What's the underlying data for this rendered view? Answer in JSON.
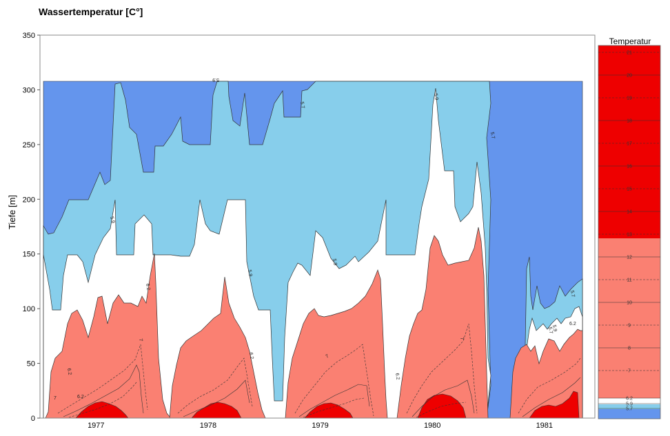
{
  "chart_data": {
    "type": "heatmap",
    "subtype": "filled-contour",
    "title": "Wassertemperatur [C°]",
    "xlabel": "",
    "ylabel": "Tiefe [m]",
    "xlim": [
      1976.6,
      1981.55
    ],
    "ylim": [
      0,
      350
    ],
    "yticks": [
      0,
      50,
      100,
      150,
      200,
      250,
      300,
      350
    ],
    "xticks": [
      {
        "label": "1977",
        "value": 1977.0
      },
      {
        "label": "1978",
        "value": 1978.0
      },
      {
        "label": "1979",
        "value": 1979.0
      },
      {
        "label": "1980",
        "value": 1980.0
      },
      {
        "label": "1981",
        "value": 1981.0
      }
    ],
    "grid": false,
    "legend_title": "Temperatur",
    "legend_placement": "right",
    "legend_levels": [
      "21",
      "20",
      "19",
      "18",
      "17",
      "16",
      "15",
      "14",
      "13",
      "12",
      "11",
      "10",
      "9",
      "8",
      "7",
      "6.2",
      "5.9",
      "5.7"
    ],
    "colors": {
      "blue": "#6495ED",
      "light_blue": "#87CEEB",
      "white": "#FFFFFF",
      "salmon": "#FA8072",
      "red": "#EE0000"
    },
    "contour_labels": [
      "5.9",
      "5.9",
      "5.7",
      "5.9",
      "6.2",
      "6.2",
      "7",
      "7",
      "6.2",
      "5.7",
      "7",
      "5.9",
      "5.7",
      "5.9",
      "6.2",
      "5.7",
      "7",
      "6.2",
      "6.2",
      "5.9"
    ],
    "bands": [
      {
        "name": "below 5.7",
        "color": "#6495ED",
        "upper_edge": [
          [
            1976.6,
            175
          ],
          [
            1976.7,
            168
          ],
          [
            1976.85,
            200
          ],
          [
            1976.9,
            220
          ],
          [
            1976.95,
            212
          ],
          [
            1977.0,
            230
          ],
          [
            1977.1,
            305
          ],
          [
            1977.2,
            255
          ],
          [
            1977.25,
            225
          ],
          [
            1977.3,
            250
          ],
          [
            1977.4,
            260
          ],
          [
            1977.55,
            250
          ],
          [
            1977.7,
            250
          ],
          [
            1977.85,
            305
          ],
          [
            1977.95,
            280
          ],
          [
            1978.1,
            265
          ],
          [
            1978.2,
            300
          ],
          [
            1978.3,
            250
          ],
          [
            1978.45,
            265
          ],
          [
            1978.6,
            300
          ],
          [
            1978.75,
            275
          ],
          [
            1978.95,
            310
          ],
          [
            1980.6,
            310
          ],
          [
            1980.6,
            0
          ]
        ]
      },
      {
        "name": "5.7 - 5.9",
        "color": "#87CEEB",
        "upper_edge": [
          [
            1976.6,
            175
          ],
          [
            1976.85,
            200
          ],
          [
            1977.1,
            305
          ],
          [
            1977.3,
            250
          ],
          [
            1977.5,
            260
          ],
          [
            1977.85,
            305
          ],
          [
            1978.2,
            300
          ],
          [
            1978.6,
            300
          ],
          [
            1978.95,
            310
          ],
          [
            1980.6,
            310
          ]
        ]
      },
      {
        "name": "5.9 - 6.2",
        "color": "#FFFFFF",
        "upper_edge": [
          [
            1976.6,
            150
          ],
          [
            1976.85,
            130
          ],
          [
            1977.0,
            175
          ],
          [
            1977.1,
            150
          ],
          [
            1977.5,
            185
          ],
          [
            1977.6,
            150
          ],
          [
            1977.85,
            200
          ],
          [
            1978.05,
            170
          ],
          [
            1978.3,
            200
          ],
          [
            1978.45,
            130
          ],
          [
            1978.6,
            110
          ],
          [
            1978.7,
            20
          ],
          [
            1978.9,
            140
          ],
          [
            1979.15,
            150
          ],
          [
            1979.5,
            160
          ],
          [
            1979.6,
            150
          ],
          [
            1979.95,
            205
          ],
          [
            1980.2,
            250
          ],
          [
            1980.3,
            155
          ],
          [
            1980.5,
            215
          ],
          [
            1980.6,
            0
          ]
        ]
      },
      {
        "name": "6.2 - 13",
        "color": "#FA8072",
        "upper_edge": [
          [
            1976.65,
            0
          ],
          [
            1976.75,
            80
          ],
          [
            1976.9,
            60
          ],
          [
            1977.05,
            110
          ],
          [
            1977.3,
            110
          ],
          [
            1977.45,
            0
          ],
          [
            1977.65,
            0
          ],
          [
            1977.8,
            60
          ],
          [
            1978.05,
            80
          ],
          [
            1978.3,
            70
          ],
          [
            1978.5,
            0
          ],
          [
            1978.75,
            0
          ],
          [
            1978.95,
            95
          ],
          [
            1979.2,
            100
          ],
          [
            1979.55,
            135
          ],
          [
            1979.7,
            0
          ],
          [
            1979.85,
            0
          ],
          [
            1979.95,
            125
          ],
          [
            1980.3,
            135
          ],
          [
            1980.55,
            160
          ],
          [
            1980.6,
            0
          ]
        ]
      },
      {
        "name": "above 13",
        "color": "#EE0000",
        "upper_edge": [
          [
            1976.85,
            0
          ],
          [
            1977.0,
            15
          ],
          [
            1977.15,
            5
          ],
          [
            1977.85,
            0
          ],
          [
            1978.05,
            15
          ],
          [
            1978.3,
            5
          ],
          [
            1978.9,
            0
          ],
          [
            1979.1,
            15
          ],
          [
            1979.4,
            5
          ],
          [
            1979.9,
            0
          ],
          [
            1980.1,
            20
          ],
          [
            1980.35,
            5
          ]
        ]
      }
    ]
  }
}
